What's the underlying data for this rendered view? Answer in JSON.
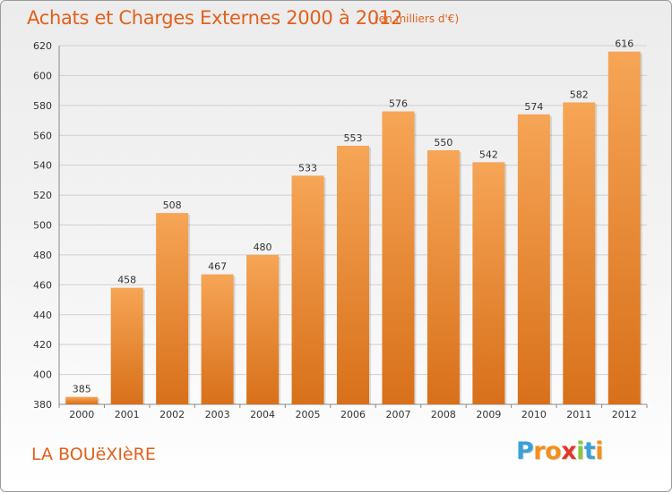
{
  "header": {
    "title": "Achats et Charges Externes 2000 à 2012",
    "subtitle": "(en milliers d'€)"
  },
  "footer": {
    "town": "LA BOUëXIèRE",
    "logo_letters": [
      "P",
      "r",
      "o",
      "x",
      "i",
      "t",
      "i"
    ],
    "logo_colors": [
      "#3aa0d8",
      "#f39019",
      "#f39019",
      "#e2372a",
      "#8cc63f",
      "#3aa0d8",
      "#f39019"
    ]
  },
  "colors": {
    "bar_top": "#f6a556",
    "bar_bottom": "#d8701a",
    "grid": "#d0d0d0",
    "title": "#e0611c"
  },
  "chart_data": {
    "type": "bar",
    "categories": [
      "2000",
      "2001",
      "2002",
      "2003",
      "2004",
      "2005",
      "2006",
      "2007",
      "2008",
      "2009",
      "2010",
      "2011",
      "2012"
    ],
    "values": [
      385,
      458,
      508,
      467,
      480,
      533,
      553,
      576,
      550,
      542,
      574,
      582,
      616
    ],
    "ylim": [
      380,
      620
    ],
    "yticks": [
      380,
      400,
      420,
      440,
      460,
      480,
      500,
      520,
      540,
      560,
      580,
      600,
      620
    ],
    "grid": true,
    "title": "Achats et Charges Externes 2000 à 2012",
    "xlabel": "",
    "ylabel": ""
  }
}
